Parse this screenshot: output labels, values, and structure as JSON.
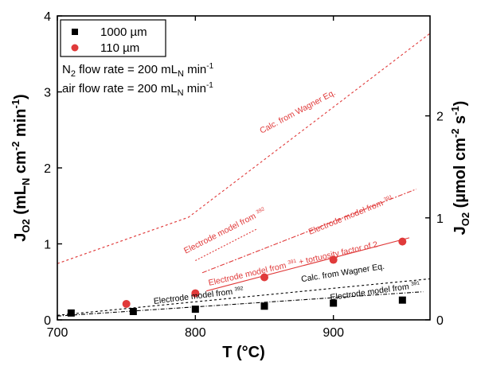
{
  "chart_data": {
    "type": "scatter",
    "xlabel": "T (°C)",
    "ylabel_left": "J",
    "ylabel_left_sub": "O2",
    "ylabel_left_units": " (mL",
    "ylabel_left_units_sub": "N",
    "ylabel_left_units2": " cm",
    "ylabel_left_sup1": "-2",
    "ylabel_left_units3": " min",
    "ylabel_left_sup2": "-1",
    "ylabel_left_close": ")",
    "ylabel_right": "J",
    "ylabel_right_sub": "O2",
    "ylabel_right_units": " (µmol cm",
    "ylabel_right_sup1": "-2",
    "ylabel_right_units2": " s",
    "ylabel_right_sup2": "-1",
    "ylabel_right_close": ")",
    "xlim": [
      700,
      970
    ],
    "ylim": [
      0,
      4
    ],
    "y2lim": [
      0,
      2.98
    ],
    "xticks": [
      700,
      800,
      900
    ],
    "yticks": [
      0,
      1,
      2,
      3,
      4
    ],
    "y2ticks": [
      0,
      1,
      2
    ],
    "legend": {
      "placement": "top-left",
      "entries": [
        {
          "label": "1000 µm",
          "marker": "square",
          "color": "#000000"
        },
        {
          "label": "110 µm",
          "marker": "circle",
          "color": "#e03a3a"
        }
      ]
    },
    "conditions": [
      {
        "text": "N",
        "sub": "2",
        "text2": " flow rate = 200 mL",
        "sub2": "N",
        "text3": " min",
        "sup": "-1"
      },
      {
        "text": "air flow rate = 200 mL",
        "sub2": "N",
        "text3": " min",
        "sup": "-1"
      }
    ],
    "series": [
      {
        "name": "1000 µm",
        "marker": "square",
        "color": "#000000",
        "x": [
          710,
          755,
          800,
          850,
          900,
          950
        ],
        "y": [
          0.09,
          0.11,
          0.14,
          0.18,
          0.22,
          0.26
        ]
      },
      {
        "name": "110 µm",
        "marker": "circle",
        "color": "#e03a3a",
        "x": [
          750,
          800,
          850,
          900,
          950
        ],
        "y": [
          0.21,
          0.35,
          0.56,
          0.79,
          1.03
        ]
      }
    ],
    "model_lines": [
      {
        "color": "#e03a3a",
        "dash": "3,3",
        "x": [
          700,
          795,
          900,
          970
        ],
        "y": [
          0.74,
          1.35,
          2.8,
          3.77
        ]
      },
      {
        "color": "#e03a3a",
        "dash": "2,2",
        "x": [
          800,
          845
        ],
        "y": [
          0.78,
          1.2
        ]
      },
      {
        "color": "#e03a3a",
        "dash": "6,2,2,2",
        "x": [
          805,
          960
        ],
        "y": [
          0.62,
          1.72
        ]
      },
      {
        "color": "#e03a3a",
        "dash": "",
        "x": [
          808,
          955
        ],
        "y": [
          0.38,
          1.08
        ]
      },
      {
        "color": "#000000",
        "dash": "3,3",
        "x": [
          700,
          970
        ],
        "y": [
          0.06,
          0.54
        ]
      },
      {
        "color": "#000000",
        "dash": "5,2,1,2",
        "x": [
          700,
          965
        ],
        "y": [
          0.05,
          0.37
        ]
      }
    ],
    "annotations": [
      {
        "text": "Calc. from Wagner Eq.",
        "color": "#e03a3a",
        "x": 848,
        "y": 2.45,
        "angle": -28
      },
      {
        "text": "Electrode model from ",
        "ref": "392",
        "color": "#e03a3a",
        "x": 793,
        "y": 0.87,
        "angle": -27
      },
      {
        "text": "Electrode model from ",
        "ref": "391",
        "color": "#e03a3a",
        "x": 883,
        "y": 1.12,
        "angle": -22
      },
      {
        "text": "Electrode model from ",
        "ref": "391",
        "text2": " + tortuosity factor of 2",
        "color": "#e03a3a",
        "x": 810,
        "y": 0.45,
        "angle": -13
      },
      {
        "text": "Calc. from Wagner Eq.",
        "color": "#000000",
        "x": 877,
        "y": 0.5,
        "angle": -9
      },
      {
        "text": "Electrode model from ",
        "ref": "392",
        "color": "#000000",
        "x": 770,
        "y": 0.21,
        "angle": -7
      },
      {
        "text": "Electrode model from ",
        "ref": "391",
        "color": "#000000",
        "x": 898,
        "y": 0.26,
        "angle": -8
      }
    ]
  }
}
